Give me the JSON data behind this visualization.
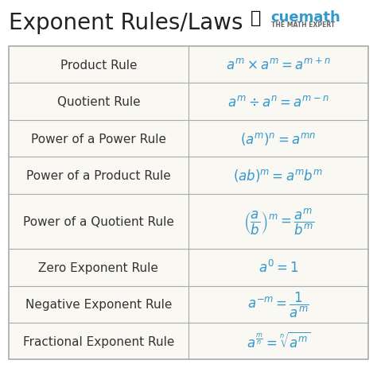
{
  "title": "Exponent Rules/Laws",
  "title_fontsize": 20,
  "title_color": "#222222",
  "bg_color": "#ffffff",
  "table_bg": "#faf8f2",
  "border_color": "#aaaaaa",
  "rule_color": "#333333",
  "formula_color": "#3399cc",
  "rows": [
    {
      "rule": "Product Rule",
      "formula": "$a^m \\times a^m = a^{m+n}$"
    },
    {
      "rule": "Quotient Rule",
      "formula": "$a^m \\div a^n = a^{m-n}$"
    },
    {
      "rule": "Power of a Power Rule",
      "formula": "$(a^m)^n = a^{mn}$"
    },
    {
      "rule": "Power of a Product Rule",
      "formula": "$(ab)^m = a^m b^m$"
    },
    {
      "rule": "Power of a Quotient Rule",
      "formula": "$\\left(\\dfrac{a}{b}\\right)^m = \\dfrac{a^m}{b^m}$"
    },
    {
      "rule": "Zero Exponent Rule",
      "formula": "$a^0 = 1$"
    },
    {
      "rule": "Negative Exponent Rule",
      "formula": "$a^{-m} = \\dfrac{1}{a^m}$"
    },
    {
      "rule": "Fractional Exponent Rule",
      "formula": "$a^{\\frac{m}{n}} = \\sqrt[n]{a^m}$"
    }
  ],
  "row_heights": [
    1,
    1,
    1,
    1,
    1.5,
    1,
    1,
    1
  ],
  "col_split": 0.5,
  "rule_fontsize": 11,
  "formula_fontsize": 12,
  "cuemath_color": "#3399cc",
  "cuemath_text": "cuemath",
  "cuemath_sub": "THE MATH EXPERT"
}
